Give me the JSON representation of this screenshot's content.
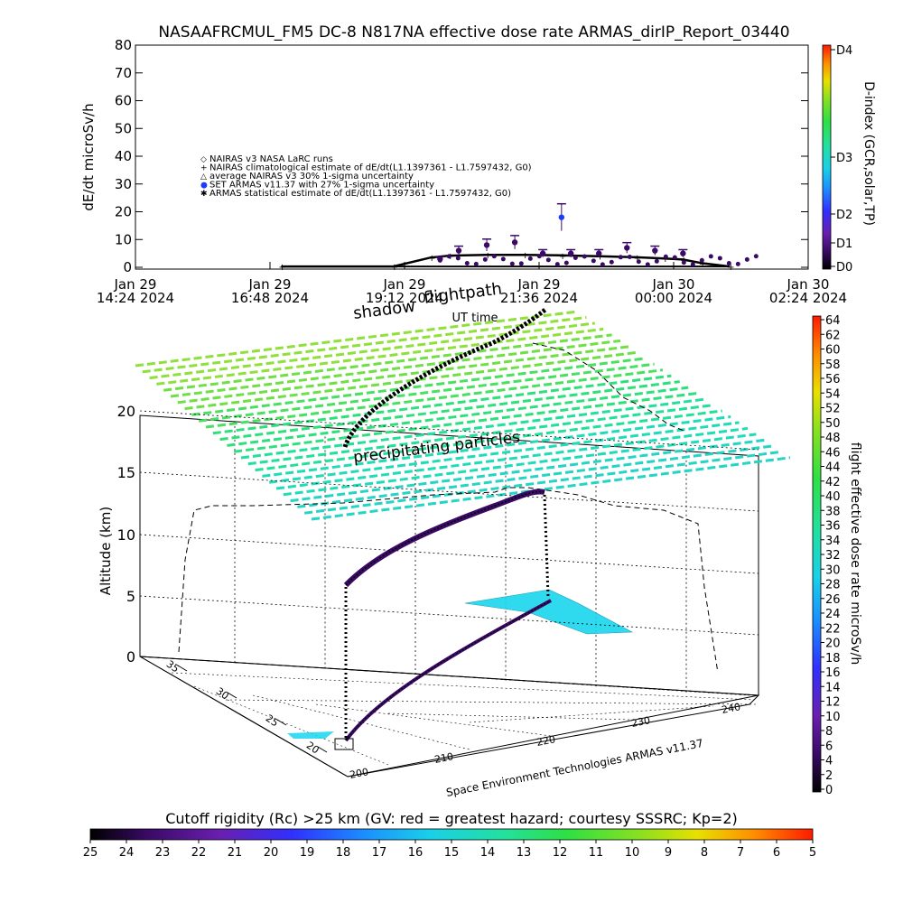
{
  "header": {
    "title": "NASAAFRCMUL_FM5 DC-8    N817NA effective dose rate ARMAS_dirIP_Report_03440"
  },
  "top_panel": {
    "ylabel": "dE/dt microSv/h",
    "yticks": [
      "0",
      "10",
      "20",
      "30",
      "40",
      "50",
      "60",
      "70",
      "80"
    ],
    "ylim": [
      0,
      80
    ],
    "x_ticks": [
      {
        "day": "Jan 29",
        "time": "14:24 2024"
      },
      {
        "day": "Jan 29",
        "time": "16:48 2024"
      },
      {
        "day": "Jan 29",
        "time": "19:12 2024"
      },
      {
        "day": "Jan 29",
        "time": "21:36 2024"
      },
      {
        "day": "Jan 30",
        "time": "00:00 2024"
      },
      {
        "day": "Jan 30",
        "time": "02:24 2024"
      }
    ],
    "xlabel": "UT time",
    "legend": [
      "NAIRAS v3 NASA LaRC runs",
      "NAIRAS climatological estimate of dE/dt(L1.1397361 - L1.7597432, G0)",
      "average NAIRAS v3 30% 1-sigma uncertainty",
      "SET ARMAS v11.37 with 27% 1-sigma uncertainty",
      "ARMAS statistical estimate of dE/dt(L1.1397361 - L1.7597432, G0)"
    ],
    "right_axis": {
      "label": "D-index (GCR,solar,TP)",
      "ticks": [
        "D0",
        "D1",
        "D2",
        "D3",
        "D4"
      ]
    }
  },
  "three_d": {
    "overlay_labels": {
      "shadow": "shadow",
      "flightpath": "flightpath",
      "precip": "precipitating particles"
    },
    "zlabel": "Altitude (km)",
    "zticks": [
      "0",
      "5",
      "10",
      "15",
      "20"
    ],
    "lat_ticks": [
      "20",
      "25",
      "30",
      "35"
    ],
    "lon_ticks": [
      "200",
      "210",
      "220",
      "230",
      "240"
    ],
    "credit": "Space Environment Technologies ARMAS v11.37"
  },
  "right_colorbar": {
    "label": "flight effective dose rate microSv/h",
    "ticks": [
      "0",
      "2",
      "4",
      "6",
      "8",
      "10",
      "12",
      "14",
      "16",
      "18",
      "20",
      "22",
      "24",
      "26",
      "28",
      "30",
      "32",
      "34",
      "36",
      "38",
      "40",
      "42",
      "44",
      "46",
      "48",
      "50",
      "52",
      "54",
      "56",
      "58",
      "60",
      "62",
      "64"
    ]
  },
  "bottom_colorbar": {
    "title": "Cutoff rigidity (Rc) >25 km (GV: red = greatest hazard; courtesy SSSRC; Kp=2)",
    "ticks": [
      "25",
      "24",
      "23",
      "22",
      "21",
      "20",
      "19",
      "18",
      "17",
      "16",
      "15",
      "14",
      "13",
      "12",
      "11",
      "10",
      "9",
      "8",
      "7",
      "6",
      "5"
    ]
  },
  "chart_data": {
    "type": "scatter",
    "title": "NASAAFRCMUL_FM5 DC-8    N817NA effective dose rate ARMAS_dirIP_Report_03440",
    "xlabel": "UT time",
    "ylabel": "dE/dt microSv/h",
    "ylim": [
      0,
      80
    ],
    "x_range": [
      "2024-01-29 14:24",
      "2024-01-30 02:24"
    ],
    "series": [
      {
        "name": "NAIRAS climatological estimate of dE/dt(L1.1397361 - L1.7597432, G0)",
        "x": [
          "2024-01-29 17:00",
          "2024-01-29 19:00",
          "2024-01-29 19:40",
          "2024-01-29 20:00",
          "2024-01-29 20:40",
          "2024-01-29 21:20",
          "2024-01-29 22:00",
          "2024-01-29 22:40",
          "2024-01-29 23:20",
          "2024-01-29 23:50",
          "2024-01-30 00:10",
          "2024-01-30 00:30",
          "2024-01-30 01:00"
        ],
        "y": [
          0.3,
          0.3,
          3.5,
          4.2,
          4.5,
          4.5,
          4.3,
          4.0,
          3.6,
          3.2,
          2.8,
          1.5,
          0.3
        ]
      },
      {
        "name": "SET ARMAS v11.37 with 27% 1-sigma uncertainty",
        "x": [
          "2024-01-29 19:50",
          "2024-01-29 20:10",
          "2024-01-29 20:40",
          "2024-01-29 21:10",
          "2024-01-29 21:40",
          "2024-01-29 22:00",
          "2024-01-29 22:10",
          "2024-01-29 22:40",
          "2024-01-29 23:10",
          "2024-01-29 23:40",
          "2024-01-30 00:10"
        ],
        "y": [
          3,
          6,
          8,
          9,
          5,
          18,
          5,
          5,
          7,
          6,
          5
        ]
      }
    ]
  }
}
